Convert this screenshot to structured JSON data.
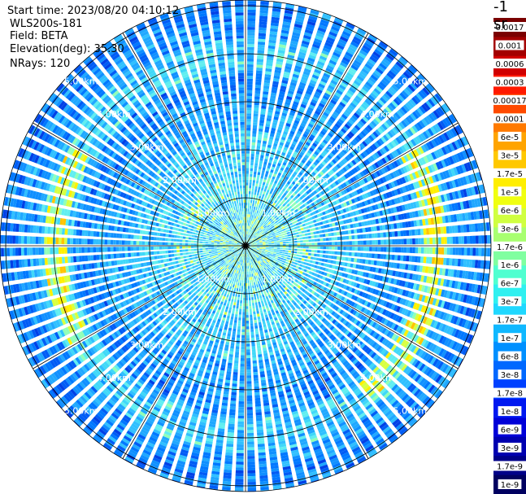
{
  "info": {
    "start_time": "Start time: 2023/08/20 04:10:12",
    "station": "WLS200s-181",
    "field": "Field: BETA",
    "elevation": "Elevation(deg): 35.30",
    "nrays": "NRays: 120"
  },
  "colorbar": {
    "unit": "-1 sr",
    "labels": [
      "0.0017",
      "0.001",
      "0.0006",
      "0.0003",
      "0.00017",
      "0.0001",
      "6e-5",
      "3e-5",
      "1.7e-5",
      "1e-5",
      "6e-6",
      "3e-6",
      "1.7e-6",
      "1e-6",
      "6e-7",
      "3e-7",
      "1.7e-7",
      "1e-7",
      "6e-8",
      "3e-8",
      "1.7e-8",
      "1e-8",
      "6e-9",
      "3e-9",
      "1.7e-9",
      "1e-9"
    ],
    "colors": [
      "#7a0000",
      "#a30000",
      "#d00000",
      "#ff1a00",
      "#ff4a00",
      "#ff7a00",
      "#ffa400",
      "#ffc800",
      "#ffee00",
      "#f0ff10",
      "#d0ff40",
      "#a8ff70",
      "#80ffa0",
      "#50ffd0",
      "#30f0f0",
      "#20d8ff",
      "#10b8ff",
      "#0090ff",
      "#0068ff",
      "#0040ff",
      "#0018f0",
      "#0000d8",
      "#0000b0",
      "#000088",
      "#000060"
    ]
  },
  "chart_data": {
    "type": "heatmap",
    "projection": "polar (PPI scan)",
    "field": "BETA",
    "elevation_deg": 35.3,
    "n_rays": 120,
    "range_rings_km": [
      1.0,
      2.0,
      3.0,
      4.0,
      5.0
    ],
    "ring_labels": [
      "1.00km",
      "2.00km",
      "3.00km",
      "4.00km",
      "5.00km"
    ],
    "azimuth_spokes_deg": [
      0,
      30,
      60,
      90,
      120,
      150,
      180,
      210,
      240,
      270,
      300,
      330
    ],
    "max_range_km": 5.0,
    "colorbar_scale": "log",
    "colorbar_range": [
      1e-09,
      0.0017
    ],
    "features": [
      {
        "description": "strong backscatter ring",
        "range_km": [
          3.6,
          4.3
        ],
        "value_approx": 1e-05
      },
      {
        "description": "weak near-field",
        "range_km": [
          0,
          1.5
        ],
        "value_approx": 6e-08
      }
    ]
  }
}
